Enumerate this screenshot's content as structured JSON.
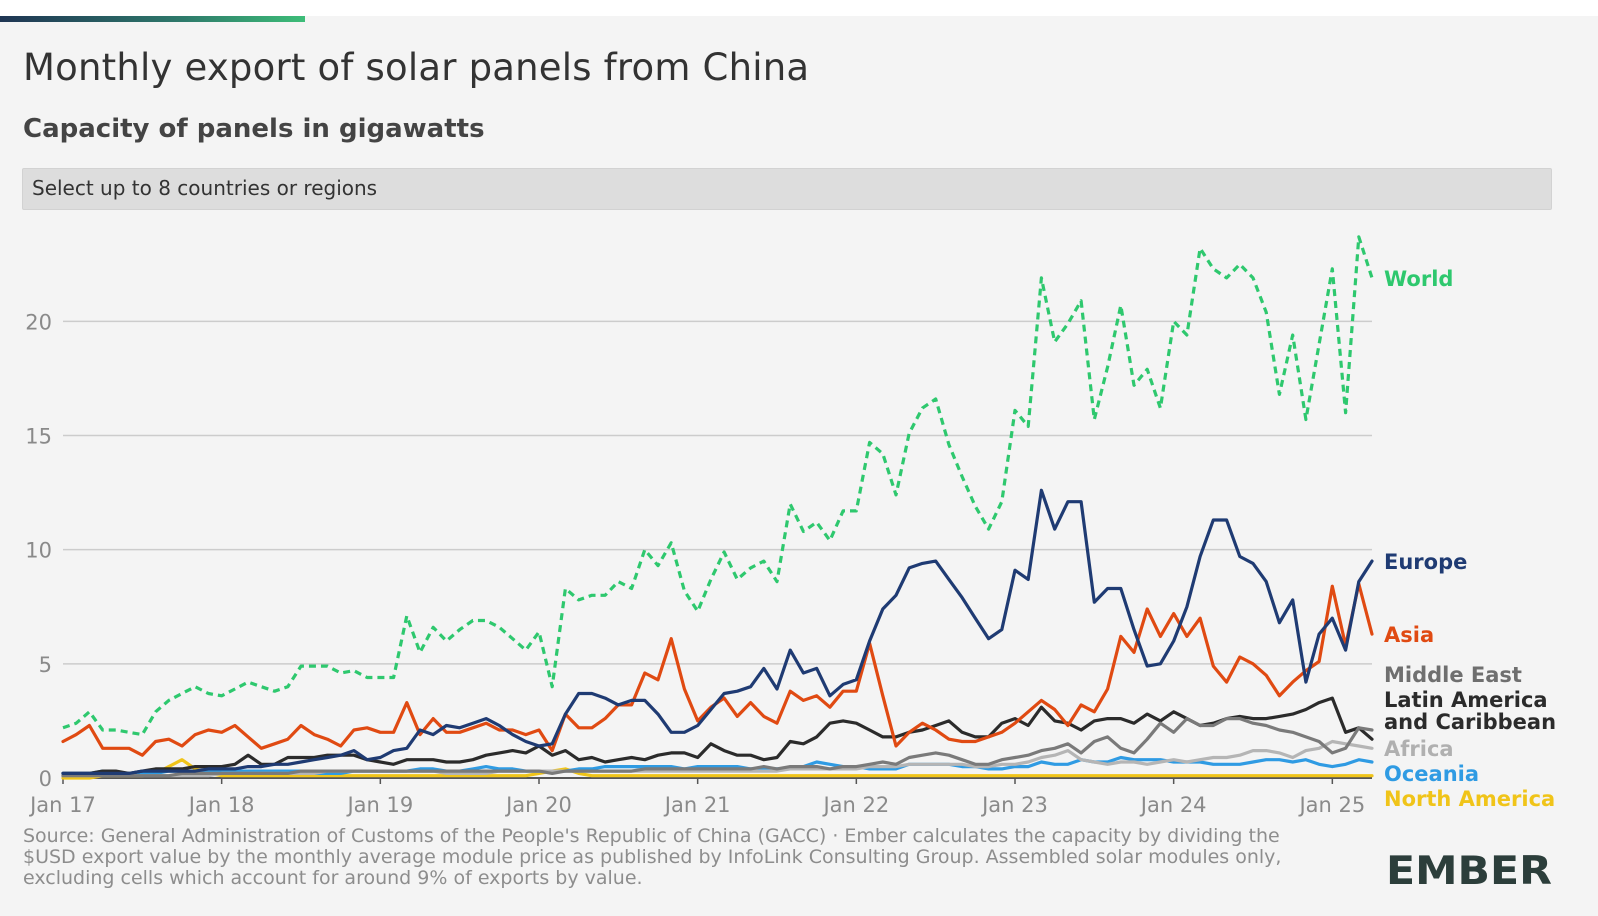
{
  "title": "Monthly export of solar panels from China",
  "subtitle": "Capacity of panels in gigawatts",
  "selector": {
    "label": "Select up to 8 countries or regions"
  },
  "source_note": "Source: General Administration of Customs of the People's Republic of China (GACC) · Ember calculates the capacity by dividing the $USD export value by the monthly average module price as published by InfoLink Consulting Group. Assembled solar modules only, excluding cells which account for around 9% of exports by value.",
  "logo": {
    "text": "EMBER",
    "color": "#2c3e3b"
  },
  "chart_data": {
    "type": "line",
    "x_start": "2017-01",
    "x_end": "2025-04",
    "x_frequency": "monthly",
    "x_tick_labels": [
      "Jan 17",
      "Jan 18",
      "Jan 19",
      "Jan 20",
      "Jan 21",
      "Jan 22",
      "Jan 23",
      "Jan 24",
      "Jan 25"
    ],
    "y_ticks": [
      0,
      5,
      10,
      15,
      20
    ],
    "ylim": [
      0,
      24
    ],
    "grid": "horizontal",
    "legend": "direct labels at right end of lines",
    "series": [
      {
        "name": "World",
        "color": "#2ec86e",
        "style": "dashed",
        "values": [
          2.2,
          2.4,
          2.9,
          2.1,
          2.1,
          2.0,
          1.9,
          2.9,
          3.4,
          3.7,
          4.0,
          3.7,
          3.6,
          3.9,
          4.2,
          4.0,
          3.8,
          4.0,
          4.9,
          4.9,
          4.9,
          4.6,
          4.7,
          4.4,
          4.4,
          4.4,
          7.1,
          5.5,
          6.6,
          6.0,
          6.5,
          6.9,
          6.9,
          6.6,
          6.1,
          5.6,
          6.4,
          4.0,
          8.3,
          7.8,
          8.0,
          8.0,
          8.6,
          8.3,
          10.0,
          9.3,
          10.3,
          8.2,
          7.3,
          8.7,
          9.9,
          8.7,
          9.2,
          9.5,
          8.6,
          12.0,
          10.8,
          11.2,
          10.4,
          11.7,
          11.7,
          14.7,
          14.2,
          12.4,
          15.1,
          16.2,
          16.6,
          14.6,
          13.2,
          11.9,
          10.9,
          12.1,
          16.1,
          15.4,
          21.9,
          19.1,
          19.9,
          20.9,
          15.7,
          18.0,
          20.7,
          17.2,
          17.9,
          16.2,
          20.0,
          19.4,
          23.2,
          22.3,
          21.9,
          22.5,
          21.9,
          20.4,
          16.8,
          19.4,
          15.7,
          19.0,
          22.3,
          16.0,
          23.7,
          21.9
        ]
      },
      {
        "name": "Europe",
        "color": "#1f3b73",
        "style": "solid",
        "values": [
          0.2,
          0.2,
          0.2,
          0.2,
          0.2,
          0.2,
          0.3,
          0.3,
          0.3,
          0.3,
          0.3,
          0.4,
          0.4,
          0.4,
          0.5,
          0.5,
          0.6,
          0.6,
          0.7,
          0.8,
          0.9,
          1.0,
          1.2,
          0.8,
          0.9,
          1.2,
          1.3,
          2.1,
          1.9,
          2.3,
          2.2,
          2.4,
          2.6,
          2.3,
          1.9,
          1.6,
          1.4,
          1.5,
          2.8,
          3.7,
          3.7,
          3.5,
          3.2,
          3.4,
          3.4,
          2.8,
          2.0,
          2.0,
          2.3,
          3.0,
          3.7,
          3.8,
          4.0,
          4.8,
          3.9,
          5.6,
          4.6,
          4.8,
          3.6,
          4.1,
          4.3,
          6.0,
          7.4,
          8.0,
          9.2,
          9.4,
          9.5,
          8.7,
          7.9,
          7.0,
          6.1,
          6.5,
          9.1,
          8.7,
          12.6,
          10.9,
          12.1,
          12.1,
          7.7,
          8.3,
          8.3,
          6.5,
          4.9,
          5.0,
          6.0,
          7.5,
          9.7,
          11.3,
          11.3,
          9.7,
          9.4,
          8.6,
          6.8,
          7.8,
          4.2,
          6.3,
          7.0,
          5.6,
          8.6,
          9.5
        ]
      },
      {
        "name": "Asia",
        "color": "#e04a12",
        "style": "solid",
        "values": [
          1.6,
          1.9,
          2.3,
          1.3,
          1.3,
          1.3,
          1.0,
          1.6,
          1.7,
          1.4,
          1.9,
          2.1,
          2.0,
          2.3,
          1.8,
          1.3,
          1.5,
          1.7,
          2.3,
          1.9,
          1.7,
          1.4,
          2.1,
          2.2,
          2.0,
          2.0,
          3.3,
          1.9,
          2.6,
          2.0,
          2.0,
          2.2,
          2.4,
          2.1,
          2.1,
          1.9,
          2.1,
          1.2,
          2.8,
          2.2,
          2.2,
          2.6,
          3.2,
          3.2,
          4.6,
          4.3,
          6.1,
          3.9,
          2.5,
          3.1,
          3.5,
          2.7,
          3.3,
          2.7,
          2.4,
          3.8,
          3.4,
          3.6,
          3.1,
          3.8,
          3.8,
          5.9,
          3.6,
          1.4,
          2.0,
          2.4,
          2.1,
          1.7,
          1.6,
          1.6,
          1.8,
          2.0,
          2.4,
          2.9,
          3.4,
          3.0,
          2.3,
          3.2,
          2.9,
          3.9,
          6.2,
          5.5,
          7.4,
          6.2,
          7.2,
          6.2,
          7.0,
          4.9,
          4.2,
          5.3,
          5.0,
          4.5,
          3.6,
          4.2,
          4.7,
          5.1,
          8.4,
          5.8,
          8.5,
          6.3
        ]
      },
      {
        "name": "Middle East",
        "color": "#7a7a7a",
        "style": "solid",
        "values": [
          0.1,
          0.1,
          0.1,
          0.1,
          0.1,
          0.1,
          0.1,
          0.1,
          0.1,
          0.2,
          0.2,
          0.2,
          0.2,
          0.2,
          0.2,
          0.2,
          0.2,
          0.2,
          0.3,
          0.3,
          0.3,
          0.3,
          0.3,
          0.3,
          0.3,
          0.3,
          0.3,
          0.3,
          0.3,
          0.3,
          0.3,
          0.3,
          0.3,
          0.3,
          0.3,
          0.3,
          0.3,
          0.2,
          0.3,
          0.3,
          0.3,
          0.3,
          0.3,
          0.3,
          0.4,
          0.4,
          0.4,
          0.4,
          0.4,
          0.4,
          0.4,
          0.4,
          0.4,
          0.5,
          0.4,
          0.5,
          0.5,
          0.5,
          0.4,
          0.5,
          0.5,
          0.6,
          0.7,
          0.6,
          0.9,
          1.0,
          1.1,
          1.0,
          0.8,
          0.6,
          0.6,
          0.8,
          0.9,
          1.0,
          1.2,
          1.3,
          1.5,
          1.1,
          1.6,
          1.8,
          1.3,
          1.1,
          1.7,
          2.4,
          2.0,
          2.6,
          2.3,
          2.3,
          2.6,
          2.6,
          2.4,
          2.3,
          2.1,
          2.0,
          1.8,
          1.6,
          1.1,
          1.3,
          2.2,
          2.1
        ]
      },
      {
        "name": "Latin America and Caribbean",
        "color": "#2b2b2b",
        "style": "solid",
        "values": [
          0.2,
          0.2,
          0.2,
          0.3,
          0.3,
          0.2,
          0.3,
          0.4,
          0.4,
          0.4,
          0.5,
          0.5,
          0.5,
          0.6,
          1.0,
          0.6,
          0.6,
          0.9,
          0.9,
          0.9,
          1.0,
          1.0,
          1.0,
          0.8,
          0.7,
          0.6,
          0.8,
          0.8,
          0.8,
          0.7,
          0.7,
          0.8,
          1.0,
          1.1,
          1.2,
          1.1,
          1.4,
          1.0,
          1.2,
          0.8,
          0.9,
          0.7,
          0.8,
          0.9,
          0.8,
          1.0,
          1.1,
          1.1,
          0.9,
          1.5,
          1.2,
          1.0,
          1.0,
          0.8,
          0.9,
          1.6,
          1.5,
          1.8,
          2.4,
          2.5,
          2.4,
          2.1,
          1.8,
          1.8,
          2.0,
          2.1,
          2.3,
          2.5,
          2.0,
          1.8,
          1.8,
          2.4,
          2.6,
          2.3,
          3.1,
          2.5,
          2.4,
          2.1,
          2.5,
          2.6,
          2.6,
          2.4,
          2.8,
          2.5,
          2.9,
          2.6,
          2.3,
          2.4,
          2.6,
          2.7,
          2.6,
          2.6,
          2.7,
          2.8,
          3.0,
          3.3,
          3.5,
          2.0,
          2.2,
          1.7
        ]
      },
      {
        "name": "Africa",
        "color": "#b5b5b5",
        "style": "solid",
        "values": [
          0.1,
          0.1,
          0.1,
          0.1,
          0.1,
          0.1,
          0.1,
          0.1,
          0.1,
          0.1,
          0.1,
          0.1,
          0.2,
          0.2,
          0.2,
          0.2,
          0.2,
          0.2,
          0.2,
          0.2,
          0.3,
          0.3,
          0.3,
          0.3,
          0.3,
          0.3,
          0.3,
          0.3,
          0.3,
          0.2,
          0.2,
          0.2,
          0.2,
          0.3,
          0.3,
          0.3,
          0.3,
          0.3,
          0.3,
          0.3,
          0.3,
          0.3,
          0.3,
          0.3,
          0.3,
          0.3,
          0.3,
          0.3,
          0.3,
          0.3,
          0.3,
          0.3,
          0.3,
          0.3,
          0.3,
          0.4,
          0.4,
          0.4,
          0.4,
          0.4,
          0.4,
          0.5,
          0.5,
          0.5,
          0.6,
          0.6,
          0.6,
          0.6,
          0.6,
          0.5,
          0.5,
          0.6,
          0.6,
          0.7,
          0.9,
          1.0,
          1.2,
          0.8,
          0.7,
          0.6,
          0.7,
          0.7,
          0.6,
          0.7,
          0.8,
          0.7,
          0.8,
          0.9,
          0.9,
          1.0,
          1.2,
          1.2,
          1.1,
          0.9,
          1.2,
          1.3,
          1.6,
          1.5,
          1.4,
          1.3
        ]
      },
      {
        "name": "Oceania",
        "color": "#2f9be3",
        "style": "solid",
        "values": [
          0.2,
          0.2,
          0.2,
          0.3,
          0.2,
          0.2,
          0.2,
          0.2,
          0.3,
          0.3,
          0.3,
          0.3,
          0.3,
          0.3,
          0.3,
          0.3,
          0.3,
          0.3,
          0.3,
          0.2,
          0.2,
          0.2,
          0.3,
          0.3,
          0.3,
          0.3,
          0.3,
          0.4,
          0.4,
          0.3,
          0.3,
          0.4,
          0.5,
          0.4,
          0.4,
          0.3,
          0.3,
          0.3,
          0.3,
          0.4,
          0.4,
          0.5,
          0.5,
          0.5,
          0.5,
          0.5,
          0.5,
          0.4,
          0.5,
          0.5,
          0.5,
          0.5,
          0.4,
          0.4,
          0.4,
          0.4,
          0.5,
          0.7,
          0.6,
          0.5,
          0.5,
          0.4,
          0.4,
          0.4,
          0.6,
          0.6,
          0.6,
          0.6,
          0.5,
          0.5,
          0.4,
          0.4,
          0.5,
          0.5,
          0.7,
          0.6,
          0.6,
          0.8,
          0.7,
          0.7,
          0.9,
          0.8,
          0.8,
          0.8,
          0.7,
          0.7,
          0.7,
          0.6,
          0.6,
          0.6,
          0.7,
          0.8,
          0.8,
          0.7,
          0.8,
          0.6,
          0.5,
          0.6,
          0.8,
          0.7
        ]
      },
      {
        "name": "North America",
        "color": "#f0c419",
        "style": "solid",
        "values": [
          0.0,
          0.0,
          0.0,
          0.1,
          0.1,
          0.1,
          0.1,
          0.2,
          0.5,
          0.8,
          0.4,
          0.2,
          0.1,
          0.1,
          0.1,
          0.1,
          0.1,
          0.1,
          0.1,
          0.1,
          0.1,
          0.1,
          0.1,
          0.1,
          0.1,
          0.1,
          0.1,
          0.1,
          0.1,
          0.1,
          0.1,
          0.1,
          0.1,
          0.1,
          0.1,
          0.1,
          0.2,
          0.3,
          0.4,
          0.2,
          0.1,
          0.1,
          0.1,
          0.1,
          0.1,
          0.1,
          0.1,
          0.1,
          0.1,
          0.1,
          0.1,
          0.1,
          0.1,
          0.1,
          0.1,
          0.1,
          0.1,
          0.1,
          0.1,
          0.1,
          0.1,
          0.1,
          0.1,
          0.1,
          0.1,
          0.1,
          0.1,
          0.1,
          0.1,
          0.1,
          0.1,
          0.1,
          0.1,
          0.1,
          0.1,
          0.1,
          0.1,
          0.1,
          0.1,
          0.1,
          0.1,
          0.1,
          0.1,
          0.1,
          0.1,
          0.1,
          0.1,
          0.1,
          0.1,
          0.1,
          0.1,
          0.1,
          0.1,
          0.1,
          0.1,
          0.1,
          0.1,
          0.1,
          0.1,
          0.1
        ]
      }
    ],
    "series_labels": [
      {
        "series": "World",
        "lines": [
          "World"
        ]
      },
      {
        "series": "Europe",
        "lines": [
          "Europe"
        ]
      },
      {
        "series": "Asia",
        "lines": [
          "Asia"
        ]
      },
      {
        "series": "Middle East",
        "lines": [
          "Middle East"
        ]
      },
      {
        "series": "Latin America and Caribbean",
        "lines": [
          "Latin America",
          "and Caribbean"
        ]
      },
      {
        "series": "Africa",
        "lines": [
          "Africa"
        ]
      },
      {
        "series": "Oceania",
        "lines": [
          "Oceania"
        ]
      },
      {
        "series": "North America",
        "lines": [
          "North America"
        ]
      }
    ]
  }
}
